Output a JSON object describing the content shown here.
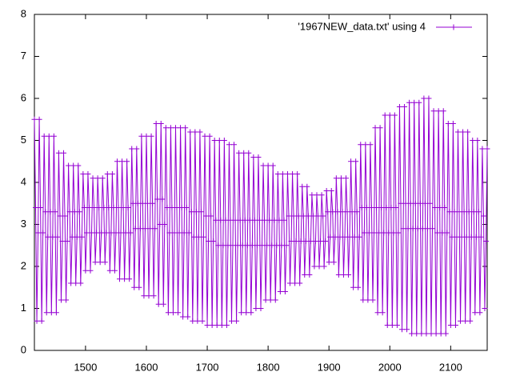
{
  "chart_data": {
    "type": "line",
    "xlim": [
      1416,
      2160
    ],
    "xticks": [
      1500,
      1600,
      1700,
      1800,
      1900,
      2000,
      2100
    ],
    "ylim": [
      0,
      8
    ],
    "yticks": [
      0,
      1,
      2,
      3,
      4,
      5,
      6,
      7,
      8
    ],
    "legend": "top-right",
    "markers": true,
    "x": [
      1416,
      1418,
      1420,
      1422,
      1424,
      1426,
      1428,
      1430,
      1432,
      1434,
      1436,
      1438,
      1440,
      1442,
      1444,
      1446,
      1448,
      1450,
      1452,
      1454,
      1456,
      1458,
      1460,
      1462,
      1464,
      1466,
      1468,
      1470,
      1472,
      1474,
      1476,
      1478,
      1480,
      1482,
      1484,
      1486,
      1488,
      1490,
      1492,
      1494,
      1496,
      1498,
      1500,
      1502,
      1504,
      1506,
      1508,
      1510,
      1512,
      1514,
      1516,
      1518,
      1520,
      1522,
      1524,
      1526,
      1528,
      1530,
      1532,
      1534,
      1536,
      1538,
      1540,
      1542,
      1544,
      1546,
      1548,
      1550,
      1552,
      1554,
      1556,
      1558,
      1560,
      1562,
      1564,
      1566,
      1568,
      1570,
      1572,
      1574,
      1576,
      1578,
      1580,
      1582,
      1584,
      1586,
      1588,
      1590,
      1592,
      1594,
      1596,
      1598,
      1600,
      1602,
      1604,
      1606,
      1608,
      1610,
      1612,
      1614,
      1616,
      1618,
      1620,
      1622,
      1624,
      1626,
      1628,
      1630,
      1632,
      1634,
      1636,
      1638,
      1640,
      1642,
      1644,
      1646,
      1648,
      1650,
      1652,
      1654,
      1656,
      1658,
      1660,
      1662,
      1664,
      1666,
      1668,
      1670,
      1672,
      1674,
      1676,
      1678,
      1680,
      1682,
      1684,
      1686,
      1688,
      1690,
      1692,
      1694,
      1696,
      1698,
      1700,
      1702,
      1704,
      1706,
      1708,
      1710,
      1712,
      1714,
      1716,
      1718,
      1720,
      1722,
      1724,
      1726,
      1728,
      1730,
      1732,
      1734,
      1736,
      1738,
      1740,
      1742,
      1744,
      1746,
      1748,
      1750,
      1752,
      1754,
      1756,
      1758,
      1760,
      1762,
      1764,
      1766,
      1768,
      1770,
      1772,
      1774,
      1776,
      1778,
      1780,
      1782,
      1784,
      1786,
      1788,
      1790,
      1792,
      1794,
      1796,
      1798,
      1800,
      1802,
      1804,
      1806,
      1808,
      1810,
      1812,
      1814,
      1816,
      1818,
      1820,
      1822,
      1824,
      1826,
      1828,
      1830,
      1832,
      1834,
      1836,
      1838,
      1840,
      1842,
      1844,
      1846,
      1848,
      1850,
      1852,
      1854,
      1856,
      1858,
      1860,
      1862,
      1864,
      1866,
      1868,
      1870,
      1872,
      1874,
      1876,
      1878,
      1880,
      1882,
      1884,
      1886,
      1888,
      1890,
      1892,
      1894,
      1896,
      1898,
      1900,
      1902,
      1904,
      1906,
      1908,
      1910,
      1912,
      1914,
      1916,
      1918,
      1920,
      1922,
      1924,
      1926,
      1928,
      1930,
      1932,
      1934,
      1936,
      1938,
      1940,
      1942,
      1944,
      1946,
      1948,
      1950,
      1952,
      1954,
      1956,
      1958,
      1960,
      1962,
      1964,
      1966,
      1968,
      1970,
      1972,
      1974,
      1976,
      1978,
      1980,
      1982,
      1984,
      1986,
      1988,
      1990,
      1992,
      1994,
      1996,
      1998,
      2000,
      2002,
      2004,
      2006,
      2008,
      2010,
      2012,
      2014,
      2016,
      2018,
      2020,
      2022,
      2024,
      2026,
      2028,
      2030,
      2032,
      2034,
      2036,
      2038,
      2040,
      2042,
      2044,
      2046,
      2048,
      2050,
      2052,
      2054,
      2056,
      2058,
      2060,
      2062,
      2064,
      2066,
      2068,
      2070,
      2072,
      2074,
      2076,
      2078,
      2080,
      2082,
      2084,
      2086,
      2088,
      2090,
      2092,
      2094,
      2096,
      2098,
      2100,
      2102,
      2104,
      2106,
      2108,
      2110,
      2112,
      2114,
      2116,
      2118,
      2120,
      2122,
      2124,
      2126,
      2128,
      2130,
      2132,
      2134,
      2136,
      2138,
      2140,
      2142,
      2144,
      2146,
      2148,
      2150,
      2152,
      2154,
      2156,
      2158,
      2160
    ],
    "series": [
      {
        "name": "'1967NEW_data.txt' using 4",
        "color": "#9400d3",
        "values": [
          5.5,
          3.4,
          0.7,
          2.8,
          5.5,
          3.4,
          0.7,
          2.8,
          5.1,
          3.3,
          0.9,
          2.7,
          5.1,
          3.3,
          0.9,
          2.7,
          5.1,
          3.3,
          0.9,
          2.7,
          4.7,
          3.2,
          1.2,
          2.6,
          4.7,
          3.2,
          1.2,
          2.6,
          4.4,
          3.3,
          1.6,
          2.7,
          4.4,
          3.3,
          1.6,
          2.7,
          4.4,
          3.3,
          1.6,
          2.7,
          4.2,
          3.4,
          1.9,
          2.8,
          4.2,
          3.4,
          1.9,
          2.8,
          4.1,
          3.4,
          2.1,
          2.8,
          4.1,
          3.4,
          2.1,
          2.8,
          4.1,
          3.4,
          2.1,
          2.8,
          4.2,
          3.4,
          1.9,
          2.8,
          4.2,
          3.4,
          1.9,
          2.8,
          4.5,
          3.4,
          1.7,
          2.8,
          4.5,
          3.4,
          1.7,
          2.8,
          4.5,
          3.4,
          1.7,
          2.8,
          4.8,
          3.5,
          1.5,
          2.9,
          4.8,
          3.5,
          1.5,
          2.9,
          5.1,
          3.5,
          1.3,
          2.9,
          5.1,
          3.5,
          1.3,
          2.9,
          5.1,
          3.5,
          1.3,
          2.9,
          5.4,
          3.6,
          1.1,
          3.0,
          5.4,
          3.6,
          1.1,
          3.0,
          5.3,
          3.4,
          0.9,
          2.8,
          5.3,
          3.4,
          0.9,
          2.8,
          5.3,
          3.4,
          0.9,
          2.8,
          5.3,
          3.4,
          0.8,
          2.8,
          5.3,
          3.4,
          0.8,
          2.8,
          5.2,
          3.3,
          0.7,
          2.7,
          5.2,
          3.3,
          0.7,
          2.7,
          5.2,
          3.3,
          0.7,
          2.7,
          5.1,
          3.2,
          0.6,
          2.6,
          5.1,
          3.2,
          0.6,
          2.6,
          5.0,
          3.1,
          0.6,
          2.5,
          5.0,
          3.1,
          0.6,
          2.5,
          5.0,
          3.1,
          0.6,
          2.5,
          4.9,
          3.1,
          0.7,
          2.5,
          4.9,
          3.1,
          0.7,
          2.5,
          4.7,
          3.1,
          0.9,
          2.5,
          4.7,
          3.1,
          0.9,
          2.5,
          4.7,
          3.1,
          0.9,
          2.5,
          4.6,
          3.1,
          1.0,
          2.5,
          4.6,
          3.1,
          1.0,
          2.5,
          4.4,
          3.1,
          1.2,
          2.5,
          4.4,
          3.1,
          1.2,
          2.5,
          4.4,
          3.1,
          1.2,
          2.5,
          4.2,
          3.1,
          1.4,
          2.5,
          4.2,
          3.1,
          1.4,
          2.5,
          4.2,
          3.2,
          1.6,
          2.6,
          4.2,
          3.2,
          1.6,
          2.6,
          4.2,
          3.2,
          1.6,
          2.6,
          3.9,
          3.2,
          1.8,
          2.6,
          3.9,
          3.2,
          1.8,
          2.6,
          3.7,
          3.2,
          2.0,
          2.6,
          3.7,
          3.2,
          2.0,
          2.6,
          3.7,
          3.2,
          2.0,
          2.6,
          3.8,
          3.3,
          2.1,
          2.7,
          3.8,
          3.3,
          2.1,
          2.7,
          4.1,
          3.3,
          1.8,
          2.7,
          4.1,
          3.3,
          1.8,
          2.7,
          4.1,
          3.3,
          1.8,
          2.7,
          4.5,
          3.3,
          1.5,
          2.7,
          4.5,
          3.3,
          1.5,
          2.7,
          4.9,
          3.4,
          1.2,
          2.8,
          4.9,
          3.4,
          1.2,
          2.8,
          4.9,
          3.4,
          1.2,
          2.8,
          5.3,
          3.4,
          0.9,
          2.8,
          5.3,
          3.4,
          0.9,
          2.8,
          5.6,
          3.4,
          0.6,
          2.8,
          5.6,
          3.4,
          0.6,
          2.8,
          5.6,
          3.4,
          0.6,
          2.8,
          5.8,
          3.5,
          0.5,
          2.9,
          5.8,
          3.5,
          0.5,
          2.9,
          5.9,
          3.5,
          0.4,
          2.9,
          5.9,
          3.5,
          0.4,
          2.9,
          5.9,
          3.5,
          0.4,
          2.9,
          6.0,
          3.5,
          0.4,
          2.9,
          6.0,
          3.5,
          0.4,
          2.9,
          5.7,
          3.4,
          0.4,
          2.8,
          5.7,
          3.4,
          0.4,
          2.8,
          5.7,
          3.4,
          0.4,
          2.8,
          5.4,
          3.3,
          0.6,
          2.7,
          5.4,
          3.3,
          0.6,
          2.7,
          5.2,
          3.3,
          0.7,
          2.7,
          5.2,
          3.3,
          0.7,
          2.7,
          5.2,
          3.3,
          0.7,
          2.7,
          5.0,
          3.3,
          0.9,
          2.7,
          5.0,
          3.3,
          0.9,
          2.7,
          4.8,
          3.2,
          1.0,
          2.6,
          4.8
        ]
      }
    ]
  }
}
